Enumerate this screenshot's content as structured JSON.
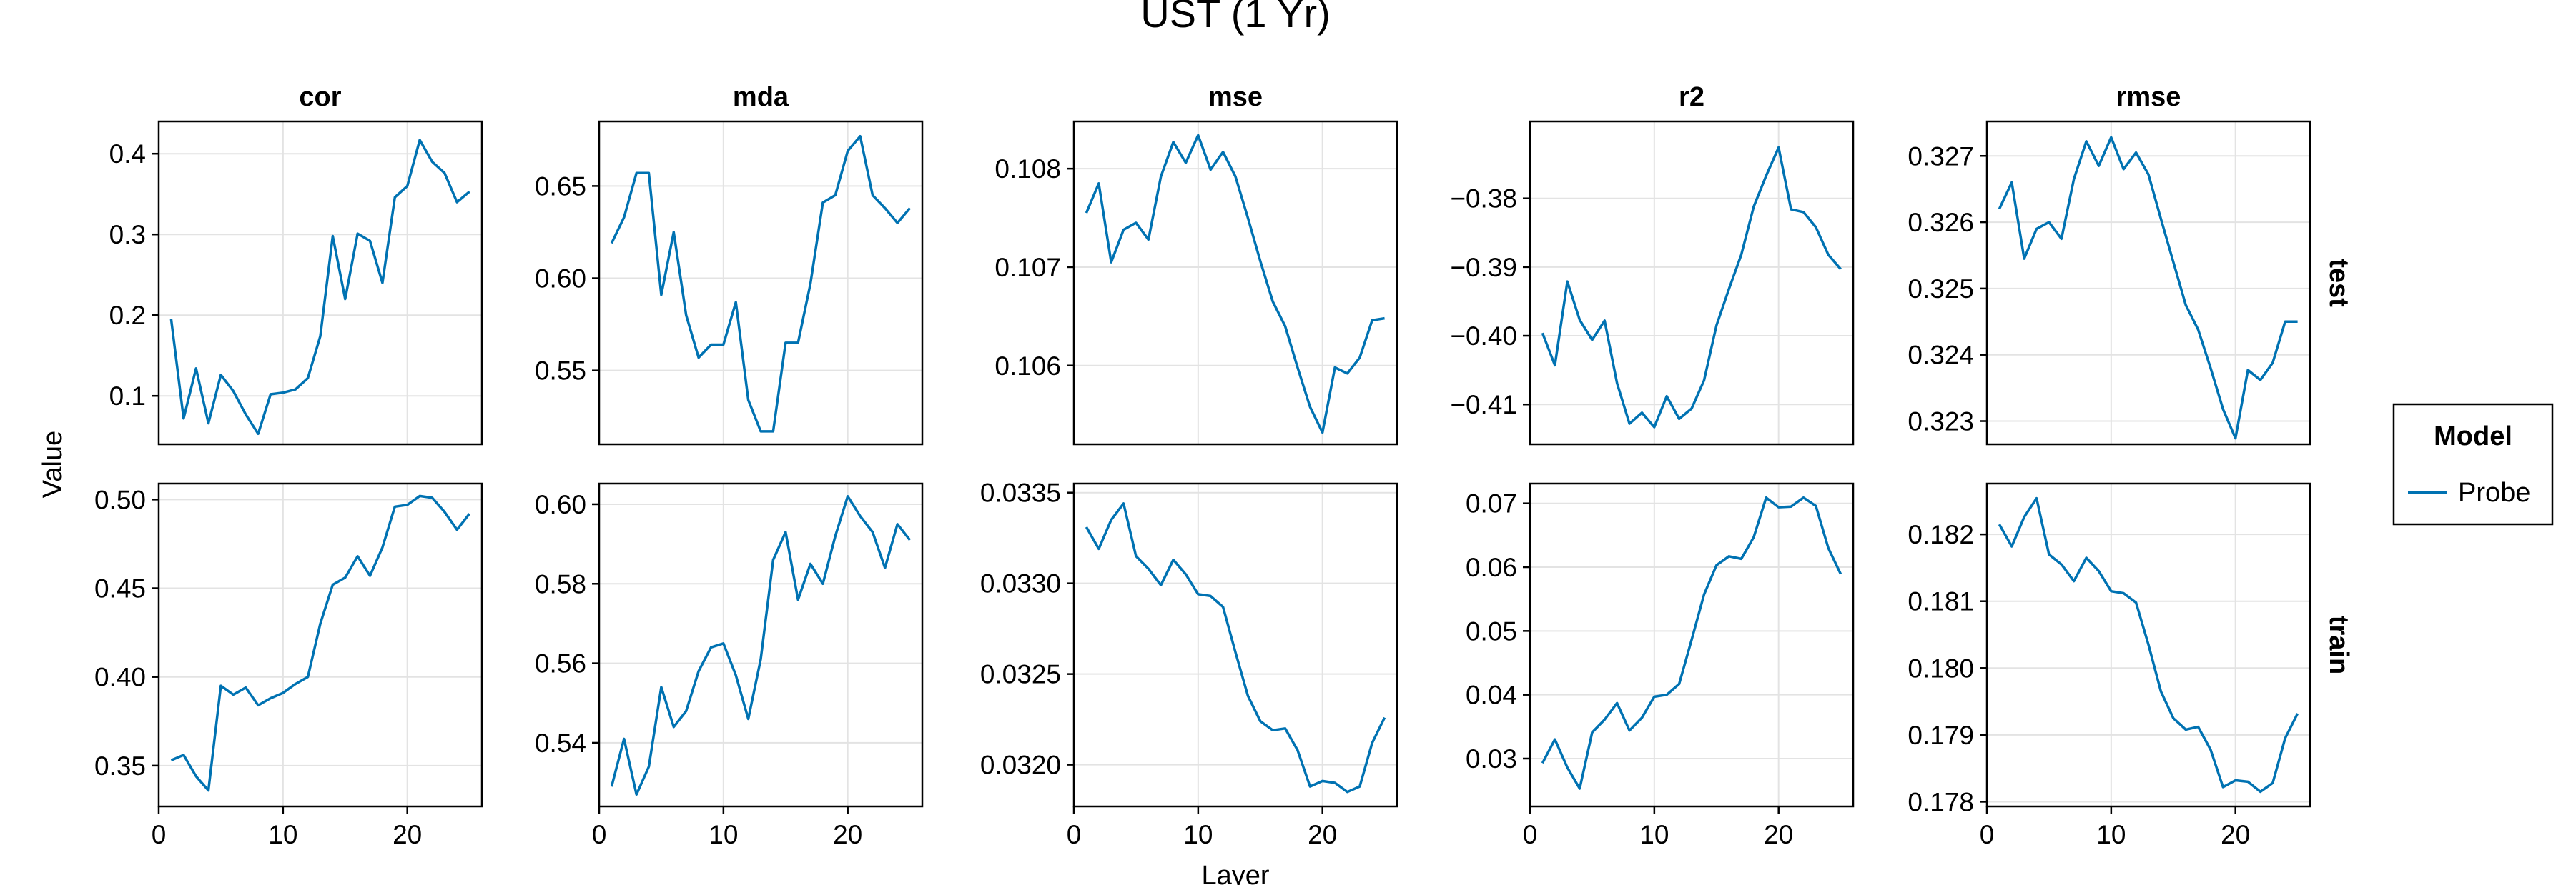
{
  "figure": {
    "title": "UST (1 Yr)",
    "xlabel": "Layer",
    "ylabel": "Value",
    "legend": {
      "title": "Model",
      "entries": [
        "Probe"
      ],
      "placement": "right"
    },
    "line_color": "#0072b2",
    "grid": true
  },
  "chart_data": [
    {
      "type": "line",
      "metric": "cor",
      "split": "test",
      "title": "cor",
      "row_label": "",
      "xlim": [
        0,
        26
      ],
      "ylim": [
        0.04,
        0.44
      ],
      "xticks": [
        0,
        10,
        20
      ],
      "yticks": [
        0.1,
        0.2,
        0.3,
        0.4
      ],
      "ytick_labels": [
        "0.1",
        "0.2",
        "0.3",
        "0.4"
      ],
      "series": [
        {
          "name": "Probe",
          "x": [
            1,
            2,
            3,
            4,
            5,
            6,
            7,
            8,
            9,
            10,
            11,
            12,
            13,
            14,
            15,
            16,
            17,
            18,
            19,
            20,
            21,
            22,
            23,
            24,
            25
          ],
          "y": [
            0.195,
            0.072,
            0.134,
            0.066,
            0.126,
            0.106,
            0.077,
            0.053,
            0.102,
            0.104,
            0.108,
            0.122,
            0.174,
            0.298,
            0.22,
            0.301,
            0.292,
            0.24,
            0.346,
            0.36,
            0.417,
            0.39,
            0.376,
            0.34,
            0.353
          ]
        }
      ]
    },
    {
      "type": "line",
      "metric": "mda",
      "split": "test",
      "title": "mda",
      "row_label": "",
      "xlim": [
        0,
        26
      ],
      "ylim": [
        0.51,
        0.685
      ],
      "xticks": [
        0,
        10,
        20
      ],
      "yticks": [
        0.55,
        0.6,
        0.65
      ],
      "ytick_labels": [
        "0.55",
        "0.60",
        "0.65"
      ],
      "series": [
        {
          "name": "Probe",
          "x": [
            1,
            2,
            3,
            4,
            5,
            6,
            7,
            8,
            9,
            10,
            11,
            12,
            13,
            14,
            15,
            16,
            17,
            18,
            19,
            20,
            21,
            22,
            23,
            24,
            25
          ],
          "y": [
            0.619,
            0.633,
            0.657,
            0.657,
            0.591,
            0.625,
            0.58,
            0.557,
            0.564,
            0.564,
            0.587,
            0.534,
            0.517,
            0.517,
            0.565,
            0.565,
            0.597,
            0.641,
            0.645,
            0.669,
            0.677,
            0.645,
            0.638,
            0.63,
            0.638
          ]
        }
      ]
    },
    {
      "type": "line",
      "metric": "mse",
      "split": "test",
      "title": "mse",
      "row_label": "",
      "xlim": [
        0,
        26
      ],
      "ylim": [
        0.1052,
        0.10848
      ],
      "xticks": [
        0,
        10,
        20
      ],
      "yticks": [
        0.106,
        0.107,
        0.108
      ],
      "ytick_labels": [
        "0.106",
        "0.107",
        "0.108"
      ],
      "series": [
        {
          "name": "Probe",
          "x": [
            1,
            2,
            3,
            4,
            5,
            6,
            7,
            8,
            9,
            10,
            11,
            12,
            13,
            14,
            15,
            16,
            17,
            18,
            19,
            20,
            21,
            22,
            23,
            24,
            25
          ],
          "y": [
            0.10755,
            0.10785,
            0.10705,
            0.10738,
            0.10745,
            0.10728,
            0.10792,
            0.10827,
            0.10806,
            0.10834,
            0.10799,
            0.10817,
            0.10792,
            0.1075,
            0.10706,
            0.10665,
            0.1064,
            0.10598,
            0.10558,
            0.10532,
            0.10598,
            0.10592,
            0.10608,
            0.10646,
            0.10648
          ]
        }
      ]
    },
    {
      "type": "line",
      "metric": "r2",
      "split": "test",
      "title": "r2",
      "row_label": "test",
      "xlim": [
        0,
        26
      ],
      "ylim": [
        -0.4158,
        -0.3688
      ],
      "xticks": [
        0,
        10,
        20
      ],
      "yticks": [
        -0.41,
        -0.4,
        -0.39,
        -0.38
      ],
      "ytick_labels": [
        "−0.41",
        "−0.40",
        "−0.39",
        "−0.38"
      ],
      "series": [
        {
          "name": "Probe",
          "x": [
            1,
            2,
            3,
            4,
            5,
            6,
            7,
            8,
            9,
            10,
            11,
            12,
            13,
            14,
            15,
            16,
            17,
            18,
            19,
            20,
            21,
            22,
            23,
            24,
            25
          ],
          "y": [
            -0.3996,
            -0.4043,
            -0.3921,
            -0.3977,
            -0.4006,
            -0.3978,
            -0.4069,
            -0.4128,
            -0.4112,
            -0.4133,
            -0.4088,
            -0.4121,
            -0.4106,
            -0.4065,
            -0.3985,
            -0.3932,
            -0.3882,
            -0.3812,
            -0.3767,
            -0.3726,
            -0.3816,
            -0.382,
            -0.3842,
            -0.3882,
            -0.3903
          ]
        }
      ]
    },
    {
      "type": "line",
      "metric": "rmse",
      "split": "test",
      "title": "rmse",
      "row_label": "test",
      "xlim": [
        0,
        26
      ],
      "ylim": [
        0.32265,
        0.32752
      ],
      "xticks": [
        0,
        10,
        20
      ],
      "yticks": [
        0.323,
        0.324,
        0.325,
        0.326,
        0.327
      ],
      "ytick_labels": [
        "0.323",
        "0.324",
        "0.325",
        "0.326",
        "0.327"
      ],
      "series": [
        {
          "name": "Probe",
          "x": [
            1,
            2,
            3,
            4,
            5,
            6,
            7,
            8,
            9,
            10,
            11,
            12,
            13,
            14,
            15,
            16,
            17,
            18,
            19,
            20,
            21,
            22,
            23,
            24,
            25
          ],
          "y": [
            0.3262,
            0.3266,
            0.32545,
            0.3259,
            0.326,
            0.32575,
            0.32665,
            0.32722,
            0.32685,
            0.32728,
            0.3268,
            0.32705,
            0.32672,
            0.32605,
            0.3254,
            0.32475,
            0.32438,
            0.3238,
            0.32318,
            0.32274,
            0.32377,
            0.32362,
            0.32388,
            0.3245,
            0.3245
          ]
        }
      ]
    },
    {
      "type": "line",
      "metric": "cor",
      "split": "train",
      "title": "",
      "row_label": "",
      "xlim": [
        0,
        26
      ],
      "ylim": [
        0.327,
        0.509
      ],
      "xticks": [
        0,
        10,
        20
      ],
      "xtick_labels": [
        "0",
        "10",
        "20"
      ],
      "yticks": [
        0.35,
        0.4,
        0.45,
        0.5
      ],
      "ytick_labels": [
        "0.35",
        "0.40",
        "0.45",
        "0.50"
      ],
      "series": [
        {
          "name": "Probe",
          "x": [
            1,
            2,
            3,
            4,
            5,
            6,
            7,
            8,
            9,
            10,
            11,
            12,
            13,
            14,
            15,
            16,
            17,
            18,
            19,
            20,
            21,
            22,
            23,
            24,
            25
          ],
          "y": [
            0.353,
            0.356,
            0.344,
            0.336,
            0.395,
            0.39,
            0.394,
            0.384,
            0.388,
            0.391,
            0.396,
            0.4,
            0.43,
            0.452,
            0.456,
            0.468,
            0.457,
            0.473,
            0.496,
            0.497,
            0.502,
            0.501,
            0.493,
            0.483,
            0.492
          ]
        }
      ]
    },
    {
      "type": "line",
      "metric": "mda",
      "split": "train",
      "title": "",
      "row_label": "",
      "xlim": [
        0,
        26
      ],
      "ylim": [
        0.524,
        0.6052
      ],
      "xticks": [
        0,
        10,
        20
      ],
      "xtick_labels": [
        "0",
        "10",
        "20"
      ],
      "yticks": [
        0.54,
        0.56,
        0.58,
        0.6
      ],
      "ytick_labels": [
        "0.54",
        "0.56",
        "0.58",
        "0.60"
      ],
      "series": [
        {
          "name": "Probe",
          "x": [
            1,
            2,
            3,
            4,
            5,
            6,
            7,
            8,
            9,
            10,
            11,
            12,
            13,
            14,
            15,
            16,
            17,
            18,
            19,
            20,
            21,
            22,
            23,
            24,
            25
          ],
          "y": [
            0.529,
            0.541,
            0.527,
            0.534,
            0.554,
            0.544,
            0.548,
            0.558,
            0.564,
            0.565,
            0.557,
            0.546,
            0.561,
            0.586,
            0.593,
            0.576,
            0.585,
            0.58,
            0.592,
            0.602,
            0.597,
            0.593,
            0.584,
            0.595,
            0.591
          ]
        }
      ]
    },
    {
      "type": "line",
      "metric": "mse",
      "split": "train",
      "title": "",
      "row_label": "",
      "xlim": [
        0,
        26
      ],
      "ylim": [
        0.03177,
        0.03355
      ],
      "xticks": [
        0,
        10,
        20
      ],
      "xtick_labels": [
        "0",
        "10",
        "20"
      ],
      "yticks": [
        0.032,
        0.0325,
        0.033,
        0.0335
      ],
      "ytick_labels": [
        "0.0320",
        "0.0325",
        "0.0330",
        "0.0335"
      ],
      "series": [
        {
          "name": "Probe",
          "x": [
            1,
            2,
            3,
            4,
            5,
            6,
            7,
            8,
            9,
            10,
            11,
            12,
            13,
            14,
            15,
            16,
            17,
            18,
            19,
            20,
            21,
            22,
            23,
            24,
            25
          ],
          "y": [
            0.03331,
            0.03319,
            0.03335,
            0.03344,
            0.03315,
            0.03308,
            0.03299,
            0.03313,
            0.03305,
            0.03294,
            0.03293,
            0.03287,
            0.03262,
            0.03238,
            0.03224,
            0.03219,
            0.0322,
            0.03208,
            0.03188,
            0.03191,
            0.0319,
            0.03185,
            0.03188,
            0.03212,
            0.03226
          ]
        }
      ]
    },
    {
      "type": "line",
      "metric": "r2",
      "split": "train",
      "title": "",
      "row_label": "train",
      "xlim": [
        0,
        26
      ],
      "ylim": [
        0.0225,
        0.0731
      ],
      "xticks": [
        0,
        10,
        20
      ],
      "xtick_labels": [
        "0",
        "10",
        "20"
      ],
      "yticks": [
        0.03,
        0.04,
        0.05,
        0.06,
        0.07
      ],
      "ytick_labels": [
        "0.03",
        "0.04",
        "0.05",
        "0.06",
        "0.07"
      ],
      "series": [
        {
          "name": "Probe",
          "x": [
            1,
            2,
            3,
            4,
            5,
            6,
            7,
            8,
            9,
            10,
            11,
            12,
            13,
            14,
            15,
            16,
            17,
            18,
            19,
            20,
            21,
            22,
            23,
            24,
            25
          ],
          "y": [
            0.0293,
            0.033,
            0.0286,
            0.0253,
            0.0341,
            0.0361,
            0.0387,
            0.0344,
            0.0364,
            0.0397,
            0.04,
            0.0417,
            0.0486,
            0.0557,
            0.0603,
            0.0617,
            0.0613,
            0.0647,
            0.0709,
            0.0694,
            0.0695,
            0.0709,
            0.0696,
            0.063,
            0.0589
          ]
        }
      ]
    },
    {
      "type": "line",
      "metric": "rmse",
      "split": "train",
      "title": "",
      "row_label": "train",
      "xlim": [
        0,
        26
      ],
      "ylim": [
        0.17793,
        0.18276
      ],
      "xticks": [
        0,
        10,
        20
      ],
      "xtick_labels": [
        "0",
        "10",
        "20"
      ],
      "yticks": [
        0.178,
        0.179,
        0.18,
        0.181,
        0.182
      ],
      "ytick_labels": [
        "0.178",
        "0.179",
        "0.180",
        "0.181",
        "0.182"
      ],
      "series": [
        {
          "name": "Probe",
          "x": [
            1,
            2,
            3,
            4,
            5,
            6,
            7,
            8,
            9,
            10,
            11,
            12,
            13,
            14,
            15,
            16,
            17,
            18,
            19,
            20,
            21,
            22,
            23,
            24,
            25
          ],
          "y": [
            0.18215,
            0.18182,
            0.18226,
            0.18254,
            0.1817,
            0.18155,
            0.1813,
            0.18165,
            0.18145,
            0.18115,
            0.18112,
            0.18098,
            0.18035,
            0.17965,
            0.17925,
            0.17908,
            0.17912,
            0.17878,
            0.17822,
            0.17832,
            0.1783,
            0.17815,
            0.17828,
            0.17895,
            0.17932
          ]
        }
      ]
    }
  ]
}
